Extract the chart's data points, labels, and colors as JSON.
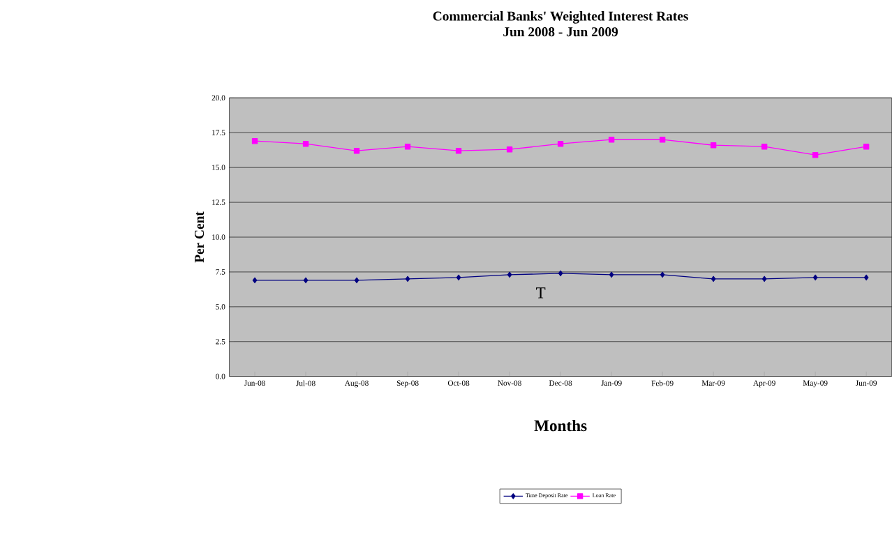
{
  "chart_data": {
    "type": "line",
    "title": "Commercial Banks' Weighted Interest Rates",
    "subtitle": "Jun 2008 - Jun 2009",
    "xlabel": "Months",
    "ylabel": "Per Cent",
    "categories": [
      "Jun-08",
      "Jul-08",
      "Aug-08",
      "Sep-08",
      "Oct-08",
      "Nov-08",
      "Dec-08",
      "Jan-09",
      "Feb-09",
      "Mar-09",
      "Apr-09",
      "May-09",
      "Jun-09"
    ],
    "series": [
      {
        "name": "Time Deposit Rate",
        "color": "#000080",
        "marker": "diamond",
        "values": [
          6.9,
          6.9,
          6.9,
          7.0,
          7.1,
          7.3,
          7.4,
          7.3,
          7.3,
          7.0,
          7.0,
          7.1,
          7.1
        ]
      },
      {
        "name": "Loan Rate",
        "color": "#ff00ff",
        "marker": "square",
        "values": [
          16.9,
          16.7,
          16.2,
          16.5,
          16.2,
          16.3,
          16.7,
          17.0,
          17.0,
          16.6,
          16.5,
          15.9,
          16.5
        ]
      }
    ],
    "ylim": [
      0,
      20
    ],
    "yticks": [
      {
        "value": 0,
        "label": "0.0"
      },
      {
        "value": 2.5,
        "label": "2.5"
      },
      {
        "value": 5,
        "label": "5.0"
      },
      {
        "value": 7.5,
        "label": "7.5"
      },
      {
        "value": 10,
        "label": "10.0"
      },
      {
        "value": 12.5,
        "label": "12.5"
      },
      {
        "value": 15,
        "label": "15.0"
      },
      {
        "value": 17.5,
        "label": "17.5"
      },
      {
        "value": 20,
        "label": "20.0"
      }
    ],
    "grid": "y",
    "legend": "bottom",
    "line_style": "solid",
    "annotations": [
      "T"
    ]
  }
}
